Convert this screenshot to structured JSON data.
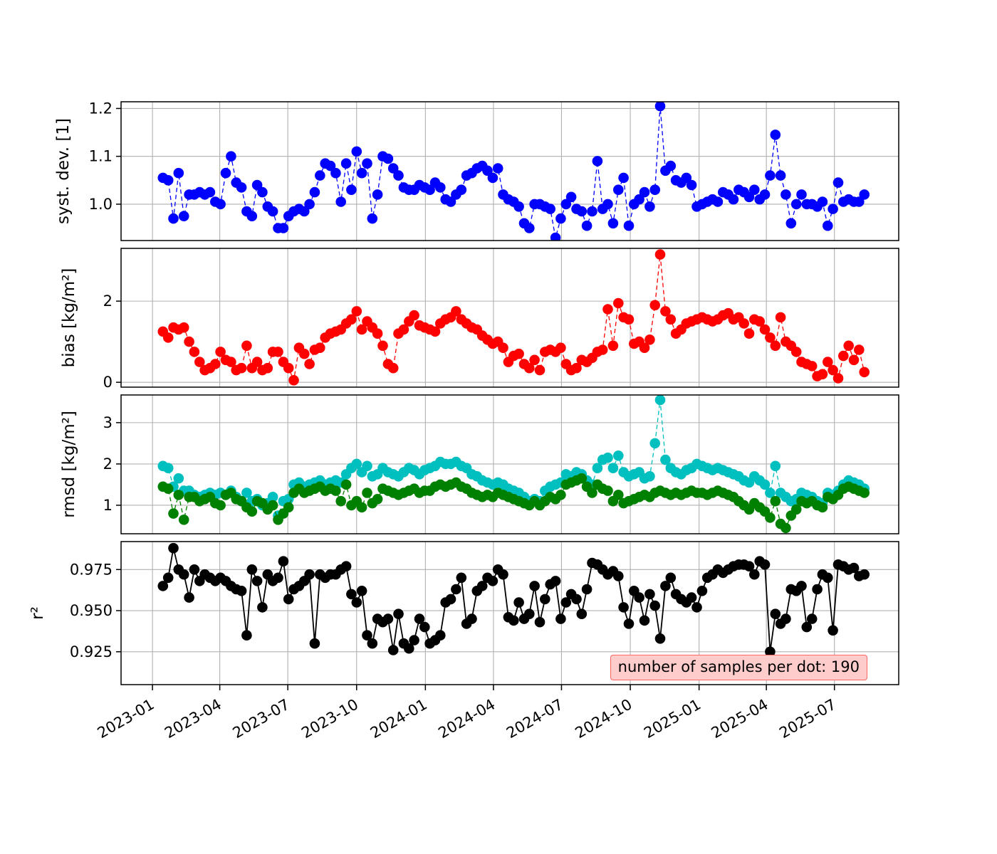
{
  "figure": {
    "background": "#ffffff"
  },
  "annotation": {
    "text": "number of samples per dot: 190",
    "bg": "#ffcccc",
    "border": "#ff6666"
  },
  "chart_data": {
    "type": "line",
    "title": "",
    "xlabel": "",
    "grid": true,
    "legend": "none",
    "marker": "o",
    "x_note": "data points are weekly, starting at x_start",
    "x_start": "2023-01-15",
    "x_step_days": 7,
    "n_points": 135,
    "xlim": [
      "2022-11-20",
      "2025-09-25"
    ],
    "x_ticks": [
      {
        "date": "2023-01-01",
        "label": "2023-01"
      },
      {
        "date": "2023-04-01",
        "label": "2023-04"
      },
      {
        "date": "2023-07-01",
        "label": "2023-07"
      },
      {
        "date": "2023-10-01",
        "label": "2023-10"
      },
      {
        "date": "2024-01-01",
        "label": "2024-01"
      },
      {
        "date": "2024-04-01",
        "label": "2024-04"
      },
      {
        "date": "2024-07-01",
        "label": "2024-07"
      },
      {
        "date": "2024-10-01",
        "label": "2024-10"
      },
      {
        "date": "2025-01-01",
        "label": "2025-01"
      },
      {
        "date": "2025-04-01",
        "label": "2025-04"
      },
      {
        "date": "2025-07-01",
        "label": "2025-07"
      }
    ],
    "panels": [
      {
        "ylabel": "syst. dev. [1]",
        "ylim": [
          0.924,
          1.214
        ],
        "yticks": [
          1.0,
          1.1,
          1.2
        ],
        "ytick_labels": [
          "1.0",
          "1.1",
          "1.2"
        ],
        "series": [
          {
            "name": "syst_dev",
            "color": "#0000ff",
            "linestyle": "dashed",
            "values": [
              1.055,
              1.05,
              0.97,
              1.065,
              0.975,
              1.02,
              1.02,
              1.025,
              1.02,
              1.025,
              1.005,
              1.0,
              1.065,
              1.1,
              1.045,
              1.035,
              0.985,
              0.975,
              1.04,
              1.025,
              0.995,
              0.985,
              0.95,
              0.95,
              0.975,
              0.985,
              0.99,
              0.985,
              1.0,
              1.025,
              1.06,
              1.085,
              1.08,
              1.065,
              1.005,
              1.085,
              1.03,
              1.11,
              1.065,
              1.085,
              0.97,
              1.02,
              1.1,
              1.095,
              1.075,
              1.06,
              1.035,
              1.03,
              1.03,
              1.04,
              1.035,
              1.03,
              1.045,
              1.035,
              1.01,
              1.005,
              1.02,
              1.03,
              1.06,
              1.065,
              1.075,
              1.08,
              1.07,
              1.055,
              1.075,
              1.02,
              1.01,
              1.005,
              0.995,
              0.96,
              0.95,
              1.0,
              1.0,
              0.995,
              0.99,
              0.93,
              0.97,
              1.0,
              1.015,
              0.99,
              0.985,
              0.955,
              0.985,
              1.09,
              0.99,
              1.0,
              0.96,
              1.03,
              1.055,
              0.955,
              1.0,
              1.01,
              1.025,
              0.995,
              1.03,
              1.205,
              1.07,
              1.08,
              1.05,
              1.045,
              1.055,
              1.04,
              0.995,
              1.0,
              1.005,
              1.01,
              1.005,
              1.025,
              1.02,
              1.01,
              1.03,
              1.025,
              1.015,
              1.03,
              1.01,
              1.02,
              1.06,
              1.145,
              1.06,
              1.02,
              0.96,
              1.0,
              1.02,
              1.0,
              1.0,
              0.995,
              1.005,
              0.955,
              0.99,
              1.045,
              1.005,
              1.01,
              1.005,
              1.005,
              1.02
            ]
          }
        ]
      },
      {
        "ylabel": "bias [kg/m²]",
        "ylim": [
          -0.12,
          3.3
        ],
        "yticks": [
          0,
          2
        ],
        "ytick_labels": [
          "0",
          "2"
        ],
        "series": [
          {
            "name": "bias",
            "color": "#ff0000",
            "linestyle": "dashed",
            "values": [
              1.25,
              1.1,
              1.35,
              1.3,
              1.35,
              1.0,
              0.75,
              0.5,
              0.3,
              0.35,
              0.45,
              0.75,
              0.55,
              0.5,
              0.3,
              0.35,
              0.9,
              0.35,
              0.5,
              0.3,
              0.35,
              0.75,
              0.75,
              0.5,
              0.35,
              0.05,
              0.85,
              0.7,
              0.45,
              0.8,
              0.85,
              1.1,
              1.2,
              1.25,
              1.3,
              1.45,
              1.55,
              1.75,
              1.3,
              1.5,
              1.35,
              1.2,
              0.9,
              0.45,
              0.35,
              1.2,
              1.3,
              1.5,
              1.65,
              1.4,
              1.35,
              1.3,
              1.25,
              1.45,
              1.55,
              1.6,
              1.75,
              1.55,
              1.45,
              1.35,
              1.3,
              1.15,
              1.05,
              0.95,
              1.0,
              0.85,
              0.5,
              0.65,
              0.7,
              0.45,
              0.35,
              0.55,
              0.3,
              0.75,
              0.8,
              0.75,
              0.85,
              0.45,
              0.3,
              0.35,
              0.55,
              0.5,
              0.6,
              0.75,
              0.8,
              1.8,
              0.9,
              1.95,
              1.6,
              1.55,
              0.95,
              1.0,
              0.85,
              1.05,
              1.9,
              3.15,
              1.75,
              1.55,
              1.2,
              1.3,
              1.45,
              1.5,
              1.55,
              1.6,
              1.55,
              1.5,
              1.55,
              1.65,
              1.7,
              1.55,
              1.6,
              1.45,
              1.2,
              1.55,
              1.5,
              1.3,
              1.1,
              0.9,
              1.6,
              1.0,
              0.9,
              0.75,
              0.5,
              0.45,
              0.4,
              0.15,
              0.2,
              0.5,
              0.3,
              0.1,
              0.65,
              0.9,
              0.55,
              0.8,
              0.25
            ]
          }
        ]
      },
      {
        "ylabel": "rmsd [kg/m²]",
        "ylim": [
          0.31,
          3.67
        ],
        "yticks": [
          1,
          2,
          3
        ],
        "ytick_labels": [
          "1",
          "2",
          "3"
        ],
        "series": [
          {
            "name": "rmsd_cyan",
            "color": "#00bfbf",
            "linestyle": "dashed",
            "values": [
              1.95,
              1.9,
              1.45,
              1.65,
              1.35,
              1.35,
              1.25,
              1.2,
              1.25,
              1.3,
              1.25,
              1.3,
              1.25,
              1.35,
              1.2,
              1.1,
              1.3,
              1.1,
              1.15,
              1.0,
              1.05,
              1.2,
              0.75,
              1.1,
              1.15,
              1.5,
              1.55,
              1.45,
              1.5,
              1.55,
              1.6,
              1.5,
              1.55,
              1.6,
              1.55,
              1.75,
              1.9,
              2.0,
              1.8,
              1.95,
              1.7,
              1.75,
              1.9,
              1.8,
              1.75,
              1.7,
              1.8,
              1.9,
              1.85,
              1.75,
              1.85,
              1.9,
              1.95,
              2.05,
              2.0,
              2.0,
              2.05,
              1.95,
              1.9,
              1.75,
              1.7,
              1.6,
              1.55,
              1.5,
              1.55,
              1.5,
              1.4,
              1.35,
              1.3,
              1.2,
              1.1,
              1.15,
              1.1,
              1.35,
              1.45,
              1.5,
              1.55,
              1.75,
              1.7,
              1.8,
              1.75,
              1.6,
              1.5,
              1.9,
              2.1,
              2.15,
              1.9,
              2.2,
              1.8,
              1.7,
              1.75,
              1.8,
              1.65,
              1.7,
              2.5,
              3.55,
              2.1,
              1.9,
              1.8,
              1.75,
              1.85,
              1.9,
              2.0,
              1.95,
              1.9,
              1.85,
              1.9,
              1.85,
              1.8,
              1.75,
              1.7,
              1.6,
              1.55,
              1.7,
              1.6,
              1.5,
              1.3,
              1.95,
              1.3,
              1.2,
              1.1,
              1.15,
              1.3,
              1.25,
              1.2,
              1.1,
              1.05,
              1.3,
              1.25,
              1.35,
              1.5,
              1.6,
              1.55,
              1.5,
              1.4
            ]
          },
          {
            "name": "rmsd_green",
            "color": "#008000",
            "linestyle": "dashed",
            "values": [
              1.45,
              1.4,
              0.8,
              1.25,
              0.65,
              1.2,
              1.2,
              1.1,
              1.15,
              1.2,
              1.05,
              1.0,
              1.25,
              1.3,
              1.15,
              1.1,
              0.95,
              0.85,
              1.1,
              1.05,
              0.9,
              1.0,
              0.65,
              0.8,
              0.95,
              1.3,
              1.4,
              1.3,
              1.35,
              1.4,
              1.45,
              1.35,
              1.4,
              1.35,
              1.1,
              1.5,
              1.0,
              1.1,
              0.95,
              1.3,
              1.05,
              1.15,
              1.4,
              1.35,
              1.3,
              1.25,
              1.3,
              1.35,
              1.4,
              1.3,
              1.35,
              1.35,
              1.45,
              1.5,
              1.45,
              1.5,
              1.55,
              1.45,
              1.4,
              1.3,
              1.25,
              1.2,
              1.25,
              1.2,
              1.3,
              1.25,
              1.2,
              1.15,
              1.1,
              1.05,
              1.0,
              1.1,
              1.0,
              1.1,
              1.2,
              1.15,
              1.25,
              1.5,
              1.55,
              1.6,
              1.65,
              1.45,
              1.3,
              1.5,
              1.4,
              1.35,
              1.1,
              1.25,
              1.05,
              1.1,
              1.15,
              1.2,
              1.25,
              1.2,
              1.3,
              1.35,
              1.3,
              1.25,
              1.3,
              1.25,
              1.3,
              1.35,
              1.3,
              1.3,
              1.25,
              1.3,
              1.35,
              1.3,
              1.25,
              1.2,
              1.1,
              1.0,
              0.9,
              1.05,
              0.95,
              0.85,
              0.7,
              1.1,
              0.55,
              0.45,
              0.75,
              0.9,
              1.1,
              1.05,
              1.1,
              1.0,
              0.95,
              1.2,
              1.15,
              1.25,
              1.4,
              1.45,
              1.4,
              1.35,
              1.3
            ]
          }
        ]
      },
      {
        "ylabel": "r²",
        "ylim": [
          0.905,
          0.992
        ],
        "yticks": [
          0.925,
          0.95,
          0.975
        ],
        "ytick_labels": [
          "0.925",
          "0.950",
          "0.975"
        ],
        "series": [
          {
            "name": "r2",
            "color": "#000000",
            "linestyle": "solid",
            "values": [
              0.965,
              0.97,
              0.988,
              0.975,
              0.972,
              0.958,
              0.975,
              0.968,
              0.972,
              0.97,
              0.968,
              0.97,
              0.968,
              0.965,
              0.963,
              0.962,
              0.935,
              0.975,
              0.968,
              0.952,
              0.972,
              0.968,
              0.97,
              0.98,
              0.957,
              0.963,
              0.965,
              0.968,
              0.972,
              0.93,
              0.972,
              0.97,
              0.972,
              0.972,
              0.975,
              0.977,
              0.96,
              0.955,
              0.962,
              0.935,
              0.93,
              0.945,
              0.943,
              0.945,
              0.926,
              0.948,
              0.93,
              0.927,
              0.932,
              0.945,
              0.94,
              0.93,
              0.932,
              0.935,
              0.955,
              0.957,
              0.963,
              0.97,
              0.942,
              0.945,
              0.962,
              0.965,
              0.97,
              0.968,
              0.975,
              0.972,
              0.946,
              0.944,
              0.955,
              0.945,
              0.948,
              0.965,
              0.943,
              0.957,
              0.966,
              0.968,
              0.945,
              0.955,
              0.96,
              0.957,
              0.948,
              0.963,
              0.979,
              0.978,
              0.975,
              0.972,
              0.974,
              0.971,
              0.952,
              0.942,
              0.962,
              0.958,
              0.944,
              0.96,
              0.953,
              0.933,
              0.965,
              0.97,
              0.96,
              0.957,
              0.955,
              0.958,
              0.952,
              0.962,
              0.97,
              0.972,
              0.975,
              0.973,
              0.975,
              0.977,
              0.978,
              0.978,
              0.977,
              0.972,
              0.98,
              0.978,
              0.925,
              0.948,
              0.942,
              0.945,
              0.963,
              0.962,
              0.965,
              0.94,
              0.945,
              0.963,
              0.972,
              0.97,
              0.938,
              0.978,
              0.977,
              0.975,
              0.976,
              0.971,
              0.972
            ]
          }
        ]
      }
    ]
  }
}
